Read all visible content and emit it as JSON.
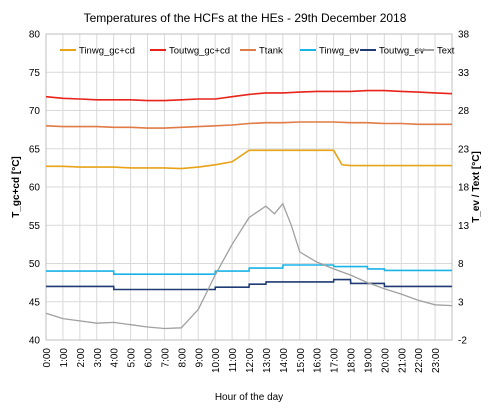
{
  "chart_data": {
    "type": "line",
    "title": "Temperatures of the HCFs at the HEs - 29th December 2018",
    "xlabel": "Hour of the day",
    "ylabel_left": "T_gc+cd [°C]",
    "ylabel_right": "T_ev / Text [°C]",
    "ylim_left": [
      40,
      80
    ],
    "ylim_right": [
      -2,
      38
    ],
    "xlim": [
      0,
      24
    ],
    "grid": true,
    "legend_position": "top",
    "x_tick_labels": [
      "0:00",
      "1:00",
      "2:00",
      "3:00",
      "4:00",
      "5:00",
      "6:00",
      "7:00",
      "8:00",
      "9:00",
      "10:00",
      "11:00",
      "12:00",
      "13:00",
      "14:00",
      "15:00",
      "16:00",
      "17:00",
      "18:00",
      "19:00",
      "20:00",
      "21:00",
      "22:00",
      "23:00"
    ],
    "y_left_ticks": [
      "80",
      "75",
      "70",
      "65",
      "60",
      "55",
      "50",
      "45",
      "40"
    ],
    "y_right_ticks": [
      "38",
      "33",
      "28",
      "23",
      "18",
      "13",
      "8",
      "3",
      "-2"
    ],
    "series": [
      {
        "name": "Tinwg_gc+cd",
        "axis": "left",
        "color": "#e8a317",
        "x": [
          0,
          1,
          2,
          3,
          4,
          5,
          6,
          7,
          8,
          9,
          10,
          11,
          12,
          13,
          14,
          15,
          16,
          17,
          17.5,
          18,
          19,
          20,
          21,
          22,
          23,
          24
        ],
        "y": [
          62.7,
          62.7,
          62.6,
          62.6,
          62.6,
          62.5,
          62.5,
          62.5,
          62.4,
          62.6,
          62.9,
          63.3,
          64.8,
          64.8,
          64.8,
          64.8,
          64.8,
          64.8,
          62.9,
          62.8,
          62.8,
          62.8,
          62.8,
          62.8,
          62.8,
          62.8
        ]
      },
      {
        "name": "Toutwg_gc+cd",
        "axis": "left",
        "color": "#e8231a",
        "x": [
          0,
          1,
          2,
          3,
          4,
          5,
          6,
          7,
          8,
          9,
          10,
          11,
          12,
          13,
          14,
          15,
          16,
          17,
          18,
          19,
          20,
          21,
          22,
          23,
          24
        ],
        "y": [
          71.8,
          71.6,
          71.5,
          71.4,
          71.4,
          71.4,
          71.3,
          71.3,
          71.4,
          71.5,
          71.5,
          71.8,
          72.1,
          72.3,
          72.3,
          72.4,
          72.5,
          72.5,
          72.5,
          72.6,
          72.6,
          72.5,
          72.4,
          72.3,
          72.2
        ]
      },
      {
        "name": "Ttank",
        "axis": "left",
        "color": "#e07b45",
        "x": [
          0,
          1,
          2,
          3,
          4,
          5,
          6,
          7,
          8,
          9,
          10,
          11,
          12,
          13,
          14,
          15,
          16,
          17,
          18,
          19,
          20,
          21,
          22,
          23,
          24
        ],
        "y": [
          68.0,
          67.9,
          67.9,
          67.9,
          67.8,
          67.8,
          67.7,
          67.7,
          67.8,
          67.9,
          68.0,
          68.1,
          68.3,
          68.4,
          68.4,
          68.5,
          68.5,
          68.5,
          68.4,
          68.4,
          68.3,
          68.3,
          68.2,
          68.2,
          68.2
        ]
      },
      {
        "name": "Tinwg_ev",
        "axis": "right",
        "color": "#18b4e8",
        "x": [
          0,
          4,
          4.01,
          10,
          10.01,
          12,
          12.01,
          14,
          14.01,
          17,
          17.01,
          19,
          19.01,
          20,
          20.01,
          24
        ],
        "y": [
          7.0,
          7.0,
          6.6,
          6.6,
          7.0,
          7.0,
          7.4,
          7.4,
          7.8,
          7.8,
          7.6,
          7.6,
          7.3,
          7.3,
          7.1,
          7.1
        ]
      },
      {
        "name": "Toutwg_ev",
        "axis": "right",
        "color": "#1f3b73",
        "x": [
          0,
          4,
          4.01,
          10,
          10.01,
          12,
          12.01,
          13,
          13.01,
          17,
          17.01,
          18,
          18.01,
          20,
          20.01,
          24
        ],
        "y": [
          5.0,
          5.0,
          4.6,
          4.6,
          4.9,
          4.9,
          5.3,
          5.3,
          5.6,
          5.6,
          5.9,
          5.9,
          5.4,
          5.4,
          5.0,
          5.0
        ]
      },
      {
        "name": "Text",
        "axis": "right",
        "color": "#a0a0a0",
        "x": [
          0,
          1,
          2,
          3,
          4,
          5,
          6,
          7,
          8,
          9,
          10,
          11,
          12,
          13,
          13.5,
          14,
          14.5,
          15,
          16,
          17,
          18,
          19,
          20,
          21,
          22,
          23,
          24
        ],
        "y": [
          1.5,
          0.8,
          0.5,
          0.2,
          0.3,
          0.0,
          -0.3,
          -0.5,
          -0.4,
          2.0,
          6.5,
          10.5,
          14.0,
          15.5,
          14.5,
          15.8,
          13.0,
          9.5,
          8.2,
          7.3,
          6.5,
          5.5,
          4.7,
          4.0,
          3.2,
          2.6,
          2.5
        ]
      }
    ]
  }
}
